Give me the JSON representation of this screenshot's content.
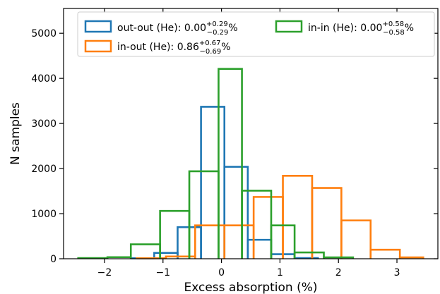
{
  "chart_data": {
    "type": "histogram",
    "xlabel": "Excess absorption (%)",
    "ylabel": "N samples",
    "xlim": [
      -2.7,
      3.7
    ],
    "ylim": [
      0,
      5550
    ],
    "xticks": [
      -2,
      -1,
      0,
      1,
      2,
      3
    ],
    "xtick_labels": [
      "−2",
      "−1",
      "0",
      "1",
      "2",
      "3"
    ],
    "yticks": [
      0,
      1000,
      2000,
      3000,
      4000,
      5000
    ],
    "ytick_labels": [
      "0",
      "1000",
      "2000",
      "3000",
      "4000",
      "5000"
    ],
    "grid": false,
    "legend_position": "top",
    "series": [
      {
        "name": "out-out (He)",
        "legend_value": "0.00",
        "legend_sup": "+0.29",
        "legend_sub": "−0.29",
        "legend_unit": "%",
        "color": "#1f77b4",
        "edges": [
          -1.55,
          -1.15,
          -0.75,
          -0.35,
          0.05,
          0.45,
          0.85,
          1.25,
          1.65
        ],
        "counts": [
          10,
          130,
          700,
          3370,
          2040,
          420,
          100,
          15
        ]
      },
      {
        "name": "in-out (He)",
        "legend_value": "0.86",
        "legend_sup": "+0.67",
        "legend_sub": "−0.69",
        "legend_unit": "%",
        "color": "#ff7f0e",
        "edges": [
          -1.45,
          -0.95,
          -0.45,
          0.05,
          0.55,
          1.05,
          1.55,
          2.05,
          2.55,
          3.05,
          3.45
        ],
        "counts": [
          10,
          50,
          740,
          740,
          1370,
          1840,
          1570,
          850,
          200,
          30
        ]
      },
      {
        "name": "in-in (He)",
        "legend_value": "0.00",
        "legend_sup": "+0.58",
        "legend_sub": "−0.58",
        "legend_unit": "%",
        "color": "#2ca02c",
        "edges": [
          -2.45,
          -1.95,
          -1.55,
          -1.05,
          -0.55,
          -0.05,
          0.35,
          0.85,
          1.25,
          1.75,
          2.25
        ],
        "counts": [
          15,
          35,
          320,
          1060,
          1940,
          4210,
          1510,
          740,
          140,
          30
        ]
      }
    ]
  }
}
